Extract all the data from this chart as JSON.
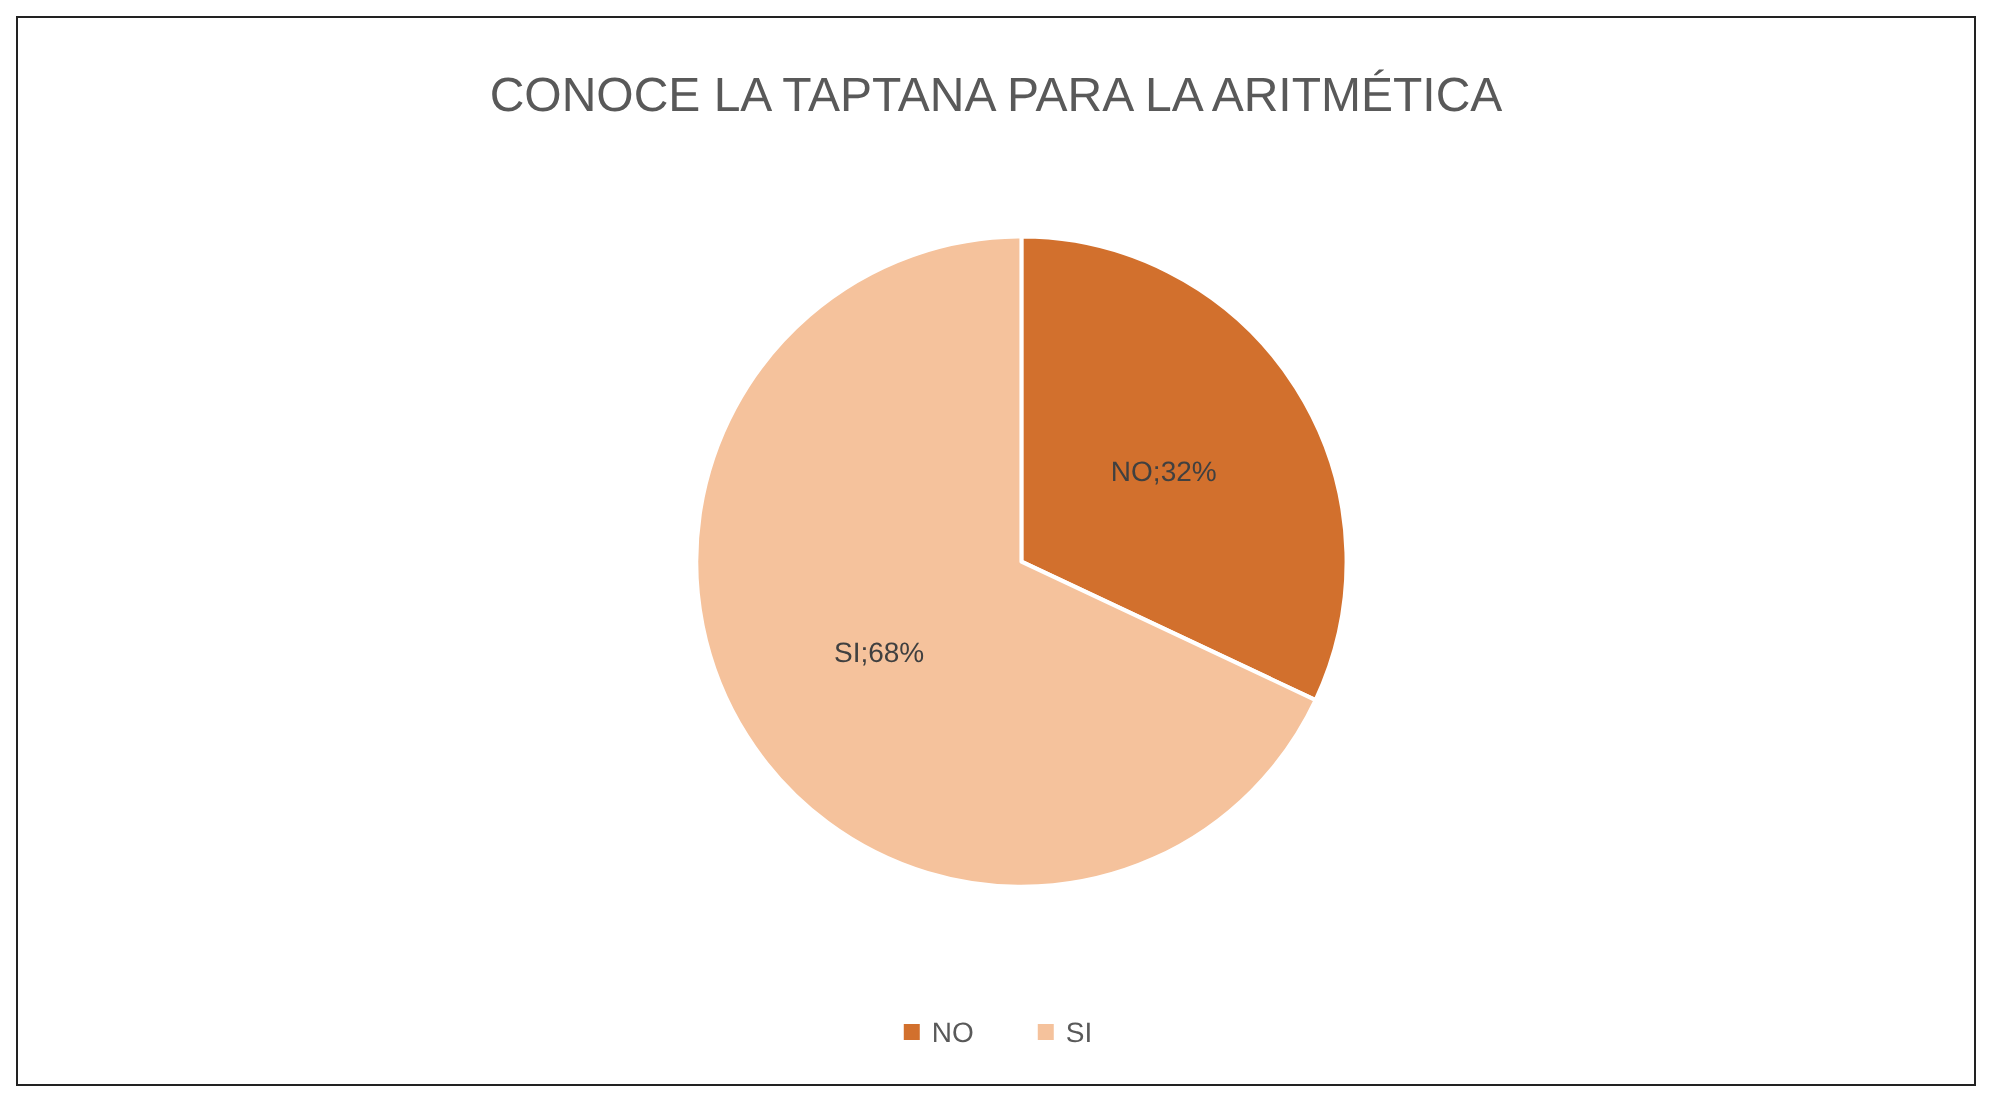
{
  "chart_data": {
    "type": "pie",
    "title": "CONOCE LA TAPTANA PARA LA ARITMÉTICA",
    "categories": [
      "NO",
      "SI"
    ],
    "values": [
      32,
      68
    ],
    "colors": [
      "#d2702d",
      "#f5c29c"
    ],
    "value_labels": [
      "NO;32%",
      "SI;68%"
    ],
    "legend": "bottom"
  }
}
